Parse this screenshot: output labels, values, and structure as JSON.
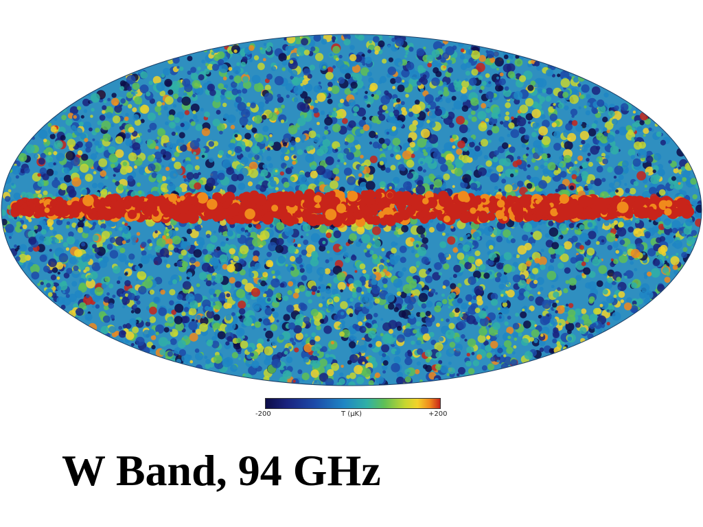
{
  "map": {
    "projection": "mollweide",
    "colormap": [
      "#0d0d47",
      "#1a237e",
      "#1c4aa8",
      "#1f86c4",
      "#30b0a6",
      "#5fbf55",
      "#c6d630",
      "#f2d22a",
      "#f08a1c",
      "#c8241a"
    ],
    "saturation_color": "#c8241a"
  },
  "colorbar": {
    "min_label": "-200",
    "unit_label": "T (µK)",
    "max_label": "+200",
    "min_value": -200,
    "max_value": 200
  },
  "title": "W Band, 94 GHz"
}
